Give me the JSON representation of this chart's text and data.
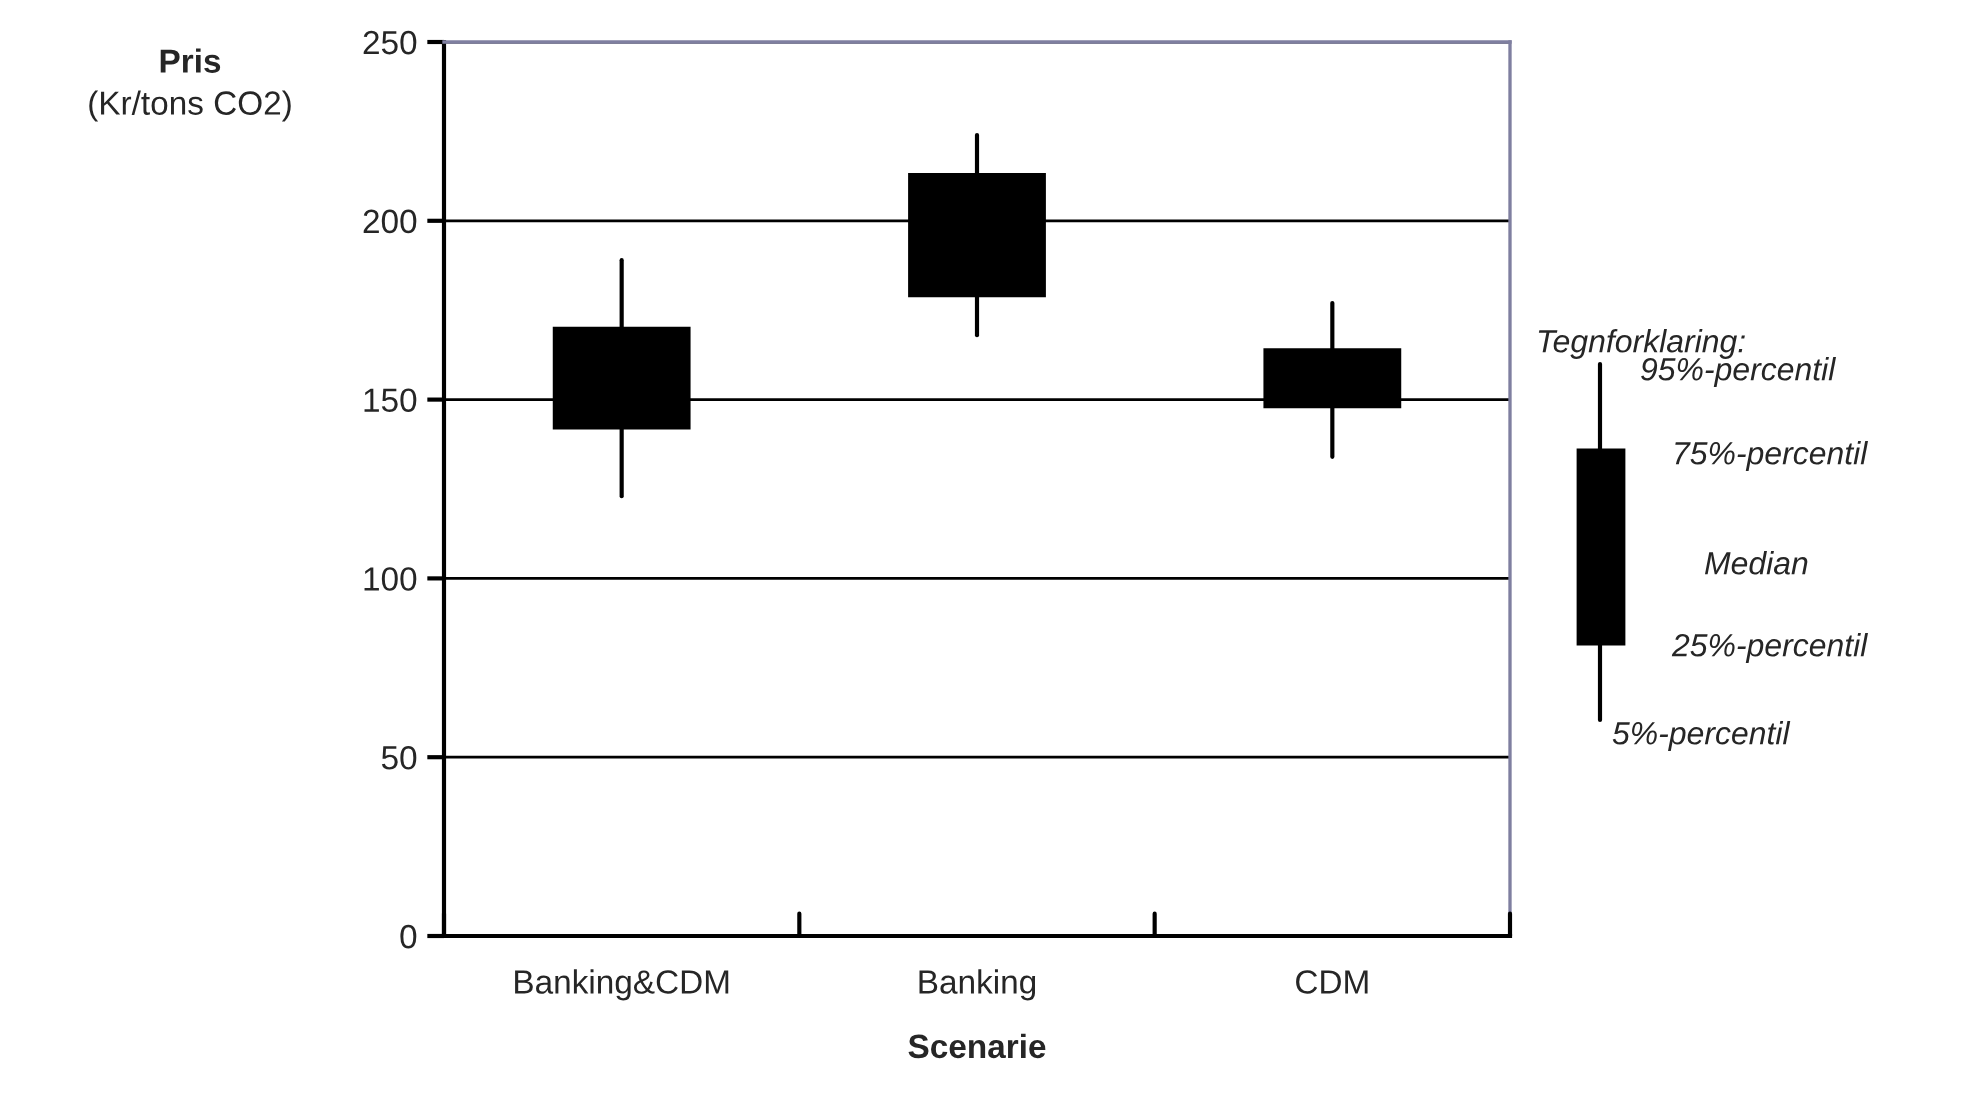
{
  "chart_data": {
    "type": "box",
    "xlabel": "Scenarie",
    "ylabel": "Pris\n(Kr/tons CO2)",
    "categories": [
      "Banking&CDM",
      "Banking",
      "CDM"
    ],
    "boxes": [
      {
        "low": 123,
        "q1": 142,
        "median": 156,
        "q3": 170,
        "high": 189
      },
      {
        "low": 168,
        "q1": 179,
        "median": 196,
        "q3": 213,
        "high": 224
      },
      {
        "low": 134,
        "q1": 148,
        "median": 156,
        "q3": 164,
        "high": 177
      }
    ],
    "color": "#000000",
    "ylim": [
      0,
      250
    ],
    "yticks": [
      0,
      50,
      100,
      150,
      200,
      250
    ],
    "grid": "y",
    "legend": false,
    "annotations": [
      "Tegnforklaring:",
      "95%-percentil",
      "75%-percentil",
      "Median",
      "25%-percentil",
      "5%-percentil"
    ]
  }
}
